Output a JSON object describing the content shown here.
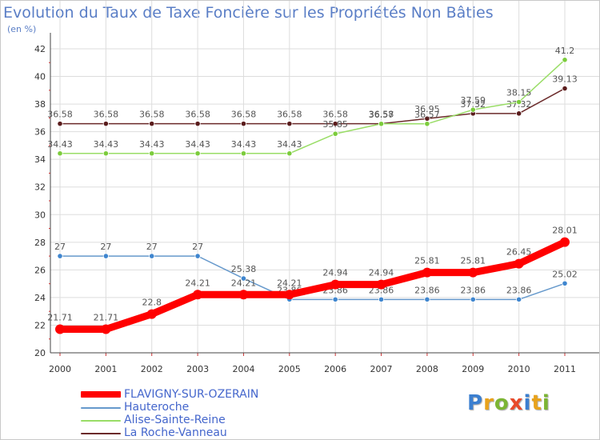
{
  "title": "Evolution du Taux de Taxe Foncière sur les Propriétés Non Bâties",
  "unit_label": "(en %)",
  "logo": {
    "text": "Proxiti",
    "letter_colors": [
      "#3b7fd0",
      "#e8a21b",
      "#7cb534",
      "#e84a2a",
      "#3b7fd0",
      "#e8a21b",
      "#7cb534"
    ]
  },
  "chart_data": {
    "type": "line",
    "x": [
      "2000",
      "2001",
      "2002",
      "2003",
      "2004",
      "2005",
      "2006",
      "2007",
      "2008",
      "2009",
      "2010",
      "2011"
    ],
    "ylim": [
      20,
      42
    ],
    "y_ticks": [
      20,
      22,
      24,
      26,
      28,
      30,
      32,
      34,
      36,
      38,
      40,
      42
    ],
    "grid": true,
    "legend_position": "bottom-left",
    "series": [
      {
        "name": "La Roche-Vanneau",
        "color": "#6b2a2a",
        "marker": "#5a1c1c",
        "values": [
          36.58,
          36.58,
          36.58,
          36.58,
          36.58,
          36.58,
          36.58,
          36.58,
          36.95,
          37.32,
          37.32,
          39.13
        ],
        "labels": [
          "36.58",
          "36.58",
          "36.58",
          "36.58",
          "36.58",
          "36.58",
          "36.58",
          "36.58",
          "36.95",
          "37.32",
          "37.32",
          "39.13"
        ]
      },
      {
        "name": "Alise-Sainte-Reine",
        "color": "#99dd66",
        "marker": "#7ccc3c",
        "values": [
          34.43,
          34.43,
          34.43,
          34.43,
          34.43,
          34.43,
          35.85,
          36.57,
          36.57,
          37.59,
          38.15,
          41.2
        ],
        "labels": [
          "34.43",
          "34.43",
          "34.43",
          "34.43",
          "34.43",
          "34.43",
          "35.85",
          "36.57",
          "36.57",
          "37.59",
          "38.15",
          "41.2"
        ]
      },
      {
        "name": "Hauteroche",
        "color": "#6699cc",
        "marker": "#3f86cf",
        "values": [
          27,
          27,
          27,
          27,
          25.38,
          23.86,
          23.86,
          23.86,
          23.86,
          23.86,
          23.86,
          25.02
        ],
        "labels": [
          "27",
          "27",
          "27",
          "27",
          "25.38",
          "23.86",
          "23.86",
          "23.86",
          "23.86",
          "23.86",
          "23.86",
          "25.02"
        ]
      },
      {
        "name": "FLAVIGNY-SUR-OZERAIN",
        "color": "#ff0000",
        "marker": "#ff0000",
        "values": [
          21.71,
          21.71,
          22.8,
          24.21,
          24.21,
          24.21,
          24.94,
          24.94,
          25.81,
          25.81,
          26.45,
          28.01
        ],
        "labels": [
          "21.71",
          "21.71",
          "22.8",
          "24.21",
          "24.21",
          "24.21",
          "24.94",
          "24.94",
          "25.81",
          "25.81",
          "26.45",
          "28.01"
        ]
      }
    ],
    "legend": [
      {
        "name": "FLAVIGNY-SUR-OZERAIN",
        "color": "#ff0000"
      },
      {
        "name": "Hauteroche",
        "color": "#6699cc"
      },
      {
        "name": "Alise-Sainte-Reine",
        "color": "#99dd66"
      },
      {
        "name": "La Roche-Vanneau",
        "color": "#6b2a2a"
      }
    ]
  }
}
